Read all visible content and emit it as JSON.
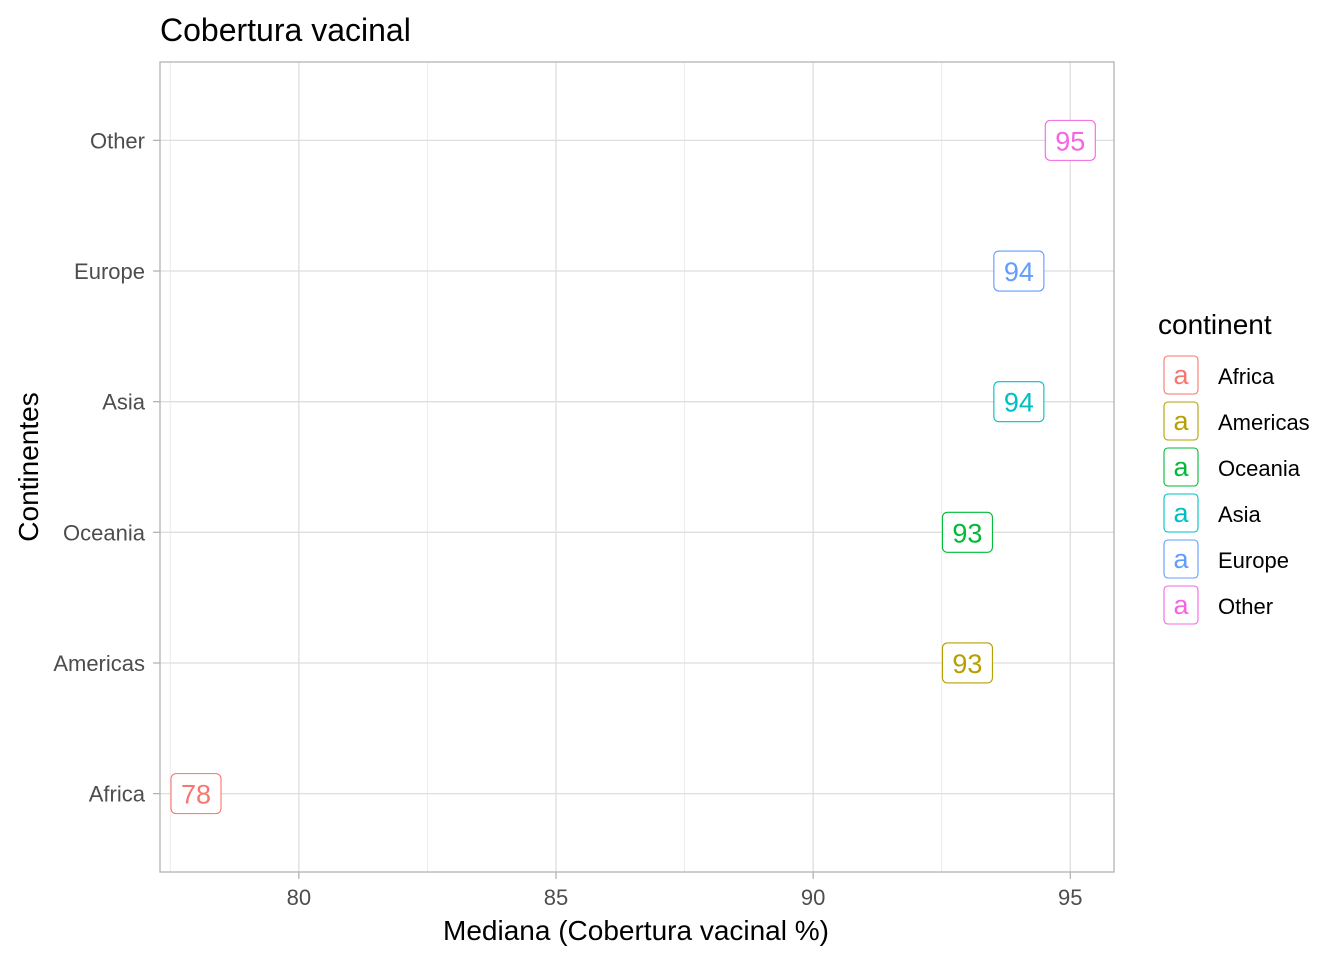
{
  "chart_data": {
    "type": "scatter",
    "title": "Cobertura vacinal",
    "xlabel": "Mediana (Cobertura vacinal %)",
    "ylabel": "Continentes",
    "xlim": [
      77.3,
      95.85
    ],
    "xticks": [
      80,
      85,
      90,
      95
    ],
    "x_tick_labels": [
      "80",
      "85",
      "90",
      "95"
    ],
    "categories": [
      "Africa",
      "Americas",
      "Oceania",
      "Asia",
      "Europe",
      "Other"
    ],
    "grid": true,
    "legend": {
      "title": "continent",
      "position": "right",
      "key_glyph": "a",
      "entries": [
        "Africa",
        "Americas",
        "Oceania",
        "Asia",
        "Europe",
        "Other"
      ]
    },
    "points": [
      {
        "category": "Africa",
        "value": 78,
        "label": "78",
        "color": "#F8766D"
      },
      {
        "category": "Americas",
        "value": 93,
        "label": "93",
        "color": "#B79F00"
      },
      {
        "category": "Oceania",
        "value": 93,
        "label": "93",
        "color": "#00BA38"
      },
      {
        "category": "Asia",
        "value": 94,
        "label": "94",
        "color": "#00BFC4"
      },
      {
        "category": "Europe",
        "value": 94,
        "label": "94",
        "color": "#619CFF"
      },
      {
        "category": "Other",
        "value": 95,
        "label": "95",
        "color": "#F564E3"
      }
    ],
    "colors": {
      "Africa": "#F8766D",
      "Americas": "#B79F00",
      "Oceania": "#00BA38",
      "Asia": "#00BFC4",
      "Europe": "#619CFF",
      "Other": "#F564E3"
    }
  }
}
